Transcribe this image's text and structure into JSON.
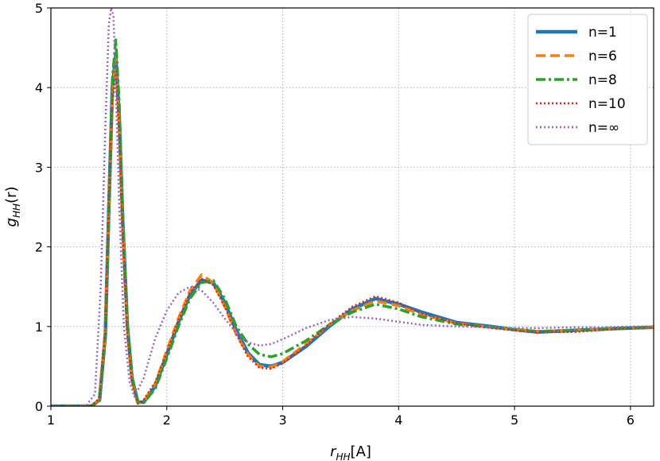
{
  "chart_data": {
    "type": "line",
    "xlabel_main": "r",
    "xlabel_sub": "HH",
    "xlabel_suffix": "[A]",
    "ylabel_main": "g",
    "ylabel_sub": "HH",
    "ylabel_suffix": "(r)",
    "xlim": [
      1.0,
      6.2
    ],
    "ylim": [
      0,
      5
    ],
    "xticks": [
      "1",
      "2",
      "3",
      "4",
      "5",
      "6"
    ],
    "yticks": [
      "0",
      "1",
      "2",
      "3",
      "4",
      "5"
    ],
    "grid": true,
    "legend_position": "top-right",
    "series": [
      {
        "name": "n=1",
        "color": "#1f77b4",
        "style": "solid",
        "x": [
          1.0,
          1.35,
          1.42,
          1.47,
          1.5,
          1.53,
          1.56,
          1.59,
          1.62,
          1.66,
          1.7,
          1.75,
          1.8,
          1.9,
          2.0,
          2.1,
          2.2,
          2.3,
          2.4,
          2.5,
          2.6,
          2.7,
          2.8,
          2.9,
          3.0,
          3.2,
          3.4,
          3.6,
          3.8,
          4.0,
          4.2,
          4.5,
          4.8,
          5.0,
          5.2,
          5.5,
          5.8,
          6.0,
          6.2
        ],
        "y": [
          0.0,
          0.0,
          0.08,
          0.9,
          2.5,
          4.0,
          4.4,
          3.6,
          2.3,
          1.0,
          0.35,
          0.05,
          0.05,
          0.25,
          0.65,
          1.05,
          1.4,
          1.58,
          1.55,
          1.3,
          0.95,
          0.67,
          0.52,
          0.5,
          0.55,
          0.75,
          1.0,
          1.22,
          1.35,
          1.28,
          1.18,
          1.05,
          1.0,
          0.96,
          0.93,
          0.95,
          0.97,
          0.98,
          0.99
        ]
      },
      {
        "name": "n=6",
        "color": "#ff7f0e",
        "style": "dashed",
        "x": [
          1.0,
          1.35,
          1.42,
          1.47,
          1.5,
          1.53,
          1.56,
          1.59,
          1.62,
          1.66,
          1.7,
          1.75,
          1.8,
          1.9,
          2.0,
          2.1,
          2.2,
          2.3,
          2.4,
          2.5,
          2.6,
          2.7,
          2.8,
          2.9,
          3.0,
          3.2,
          3.4,
          3.6,
          3.8,
          4.0,
          4.2,
          4.5,
          4.8,
          5.0,
          5.2,
          5.5,
          5.8,
          6.0,
          6.2
        ],
        "y": [
          0.0,
          0.0,
          0.09,
          0.95,
          2.5,
          3.9,
          4.35,
          3.5,
          2.2,
          0.95,
          0.32,
          0.04,
          0.06,
          0.28,
          0.7,
          1.1,
          1.45,
          1.65,
          1.55,
          1.25,
          0.9,
          0.65,
          0.5,
          0.49,
          0.56,
          0.78,
          1.02,
          1.2,
          1.32,
          1.26,
          1.15,
          1.04,
          0.99,
          0.96,
          0.94,
          0.95,
          0.97,
          0.98,
          0.99
        ]
      },
      {
        "name": "n=8",
        "color": "#2ca02c",
        "style": "dashdot",
        "x": [
          1.0,
          1.35,
          1.42,
          1.47,
          1.5,
          1.53,
          1.56,
          1.59,
          1.62,
          1.66,
          1.7,
          1.75,
          1.8,
          1.9,
          2.0,
          2.1,
          2.2,
          2.3,
          2.4,
          2.5,
          2.6,
          2.7,
          2.8,
          2.9,
          3.0,
          3.2,
          3.4,
          3.6,
          3.8,
          4.0,
          4.2,
          4.5,
          4.8,
          5.0,
          5.2,
          5.5,
          5.8,
          6.0,
          6.2
        ],
        "y": [
          0.0,
          0.0,
          0.07,
          0.85,
          2.4,
          4.1,
          4.6,
          3.8,
          2.4,
          1.05,
          0.38,
          0.06,
          0.04,
          0.22,
          0.6,
          1.0,
          1.35,
          1.55,
          1.58,
          1.35,
          1.0,
          0.78,
          0.65,
          0.62,
          0.66,
          0.82,
          1.02,
          1.18,
          1.28,
          1.22,
          1.12,
          1.03,
          0.99,
          0.96,
          0.94,
          0.95,
          0.97,
          0.98,
          0.99
        ]
      },
      {
        "name": "n=10",
        "color": "#d62728",
        "style": "dotted",
        "x": [
          1.0,
          1.35,
          1.42,
          1.47,
          1.5,
          1.53,
          1.56,
          1.59,
          1.62,
          1.66,
          1.7,
          1.75,
          1.8,
          1.9,
          2.0,
          2.1,
          2.2,
          2.3,
          2.4,
          2.5,
          2.6,
          2.7,
          2.8,
          2.9,
          3.0,
          3.2,
          3.4,
          3.6,
          3.8,
          4.0,
          4.2,
          4.5,
          4.8,
          5.0,
          5.2,
          5.5,
          5.8,
          6.0,
          6.2
        ],
        "y": [
          0.0,
          0.0,
          0.1,
          1.0,
          2.6,
          3.8,
          4.2,
          3.4,
          2.1,
          0.9,
          0.3,
          0.03,
          0.08,
          0.3,
          0.68,
          1.08,
          1.42,
          1.6,
          1.52,
          1.25,
          0.9,
          0.62,
          0.48,
          0.47,
          0.54,
          0.76,
          1.03,
          1.25,
          1.38,
          1.3,
          1.16,
          1.04,
          0.98,
          0.95,
          0.93,
          0.93,
          0.96,
          0.98,
          0.99
        ]
      },
      {
        "name": "n=∞",
        "color": "#9467bd",
        "style": "dotted",
        "x": [
          1.0,
          1.3,
          1.38,
          1.43,
          1.47,
          1.5,
          1.52,
          1.54,
          1.56,
          1.59,
          1.63,
          1.68,
          1.72,
          1.8,
          1.9,
          2.0,
          2.1,
          2.2,
          2.3,
          2.4,
          2.5,
          2.6,
          2.7,
          2.8,
          2.9,
          3.0,
          3.2,
          3.4,
          3.6,
          3.8,
          4.0,
          4.2,
          4.5,
          4.8,
          5.0,
          5.2,
          5.5,
          5.8,
          6.0,
          6.2
        ],
        "y": [
          0.0,
          0.0,
          0.15,
          1.5,
          3.5,
          4.8,
          5.0,
          4.9,
          4.0,
          2.5,
          1.0,
          0.3,
          0.12,
          0.35,
          0.85,
          1.2,
          1.42,
          1.5,
          1.45,
          1.3,
          1.1,
          0.92,
          0.8,
          0.76,
          0.78,
          0.84,
          0.98,
          1.08,
          1.12,
          1.1,
          1.06,
          1.02,
          1.0,
          0.99,
          0.98,
          0.98,
          0.99,
          0.99,
          1.0,
          1.0
        ]
      }
    ]
  }
}
